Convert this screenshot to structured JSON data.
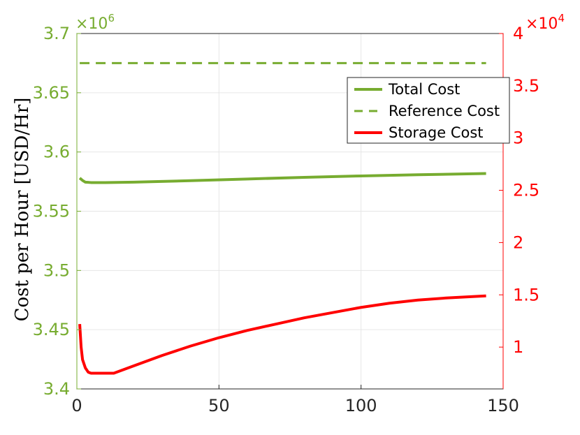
{
  "chart_data": {
    "type": "line",
    "ylabel": "Cost per Hour [USD/Hr]",
    "x": {
      "lim": [
        0,
        150
      ],
      "ticks": [
        0,
        50,
        100,
        150
      ]
    },
    "y_left": {
      "lim": [
        3.4,
        3.7
      ],
      "ticks": [
        3.4,
        3.45,
        3.5,
        3.55,
        3.6,
        3.65,
        3.7
      ],
      "tick_labels": [
        "3.4",
        "3.45",
        "3.5",
        "3.55",
        "3.6",
        "3.65",
        "3.7"
      ],
      "multiplier": "×10",
      "multiplier_exp": "6",
      "color": "#77AC30"
    },
    "y_right": {
      "lim": [
        0.6,
        4.0
      ],
      "ticks": [
        1,
        1.5,
        2,
        2.5,
        3,
        3.5,
        4
      ],
      "tick_labels": [
        "1",
        "1.5",
        "2",
        "2.5",
        "3",
        "3.5",
        "4"
      ],
      "multiplier": "×10",
      "multiplier_exp": "4",
      "color": "#FF0000"
    },
    "grid": true,
    "legend_position": "top-right",
    "series": [
      {
        "name": "Total Cost",
        "axis": "left",
        "color": "#77AC30",
        "style": "solid",
        "points": [
          [
            1,
            3.578
          ],
          [
            2,
            3.576
          ],
          [
            3,
            3.5745
          ],
          [
            5,
            3.5742
          ],
          [
            10,
            3.5742
          ],
          [
            20,
            3.5745
          ],
          [
            40,
            3.5758
          ],
          [
            60,
            3.5772
          ],
          [
            80,
            3.5786
          ],
          [
            100,
            3.5798
          ],
          [
            120,
            3.5808
          ],
          [
            144,
            3.5818
          ]
        ]
      },
      {
        "name": "Reference Cost",
        "axis": "left",
        "color": "#77AC30",
        "style": "dashed",
        "points": [
          [
            1,
            3.675
          ],
          [
            144,
            3.675
          ]
        ]
      },
      {
        "name": "Storage Cost",
        "axis": "right",
        "color": "#FF0000",
        "style": "solid",
        "points": [
          [
            1,
            1.22
          ],
          [
            1.5,
            1.0
          ],
          [
            2,
            0.88
          ],
          [
            3,
            0.8
          ],
          [
            4,
            0.76
          ],
          [
            5,
            0.75
          ],
          [
            8,
            0.75
          ],
          [
            13,
            0.75
          ],
          [
            20,
            0.82
          ],
          [
            30,
            0.92
          ],
          [
            40,
            1.01
          ],
          [
            50,
            1.09
          ],
          [
            60,
            1.16
          ],
          [
            70,
            1.22
          ],
          [
            80,
            1.28
          ],
          [
            90,
            1.33
          ],
          [
            100,
            1.38
          ],
          [
            110,
            1.42
          ],
          [
            120,
            1.45
          ],
          [
            130,
            1.47
          ],
          [
            144,
            1.49
          ]
        ]
      }
    ]
  }
}
